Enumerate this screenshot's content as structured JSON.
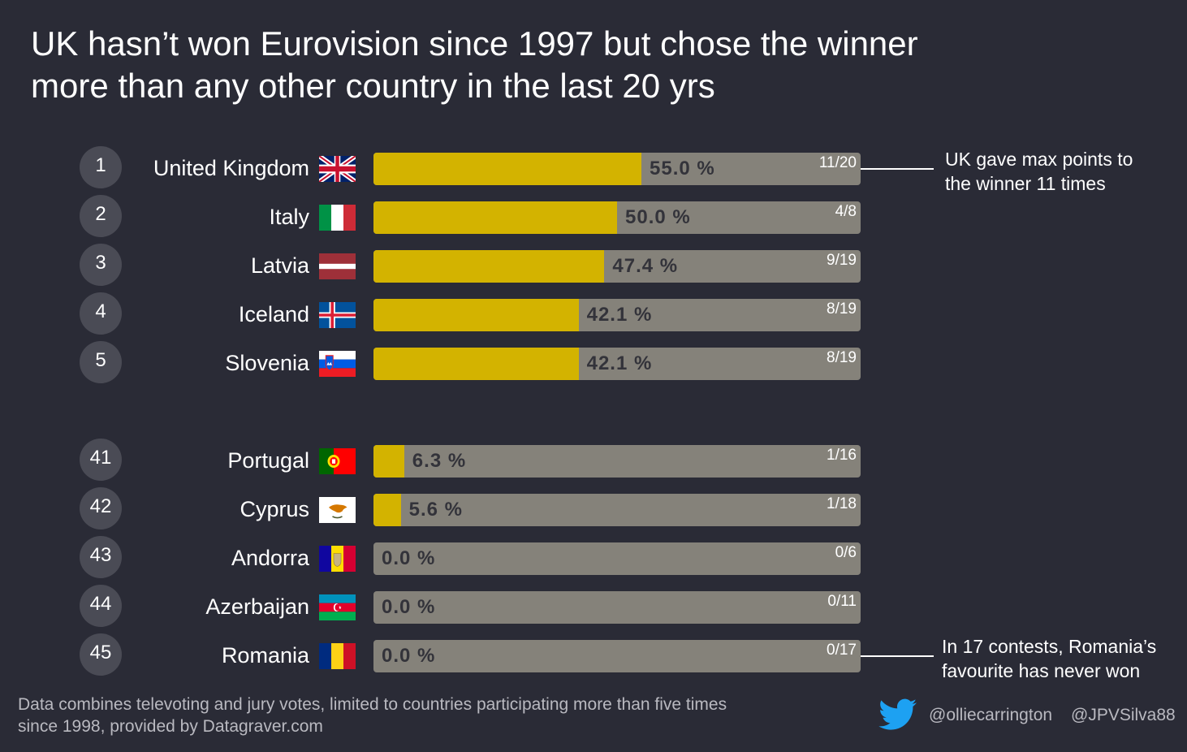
{
  "title": {
    "line1": "UK hasn’t won Eurovision since 1997 but chose the winner",
    "line2": "more than any other country in the last 20 yrs"
  },
  "chart_data": {
    "type": "bar",
    "orientation": "horizontal",
    "unit": "%",
    "xlim": [
      0,
      100
    ],
    "colors": {
      "fill": "#d3b300",
      "track": "#85827a",
      "background": "#2a2b36",
      "rank_circle": "#4a4b55"
    },
    "groups": [
      {
        "rows": [
          {
            "rank": "1",
            "country": "United Kingdom",
            "flag": "uk-flag-icon",
            "value": 55.0,
            "label": "55.0 %",
            "fraction": "11/20"
          },
          {
            "rank": "2",
            "country": "Italy",
            "flag": "italy-flag-icon",
            "value": 50.0,
            "label": "50.0 %",
            "fraction": "4/8"
          },
          {
            "rank": "3",
            "country": "Latvia",
            "flag": "latvia-flag-icon",
            "value": 47.4,
            "label": "47.4 %",
            "fraction": "9/19"
          },
          {
            "rank": "4",
            "country": "Iceland",
            "flag": "iceland-flag-icon",
            "value": 42.1,
            "label": "42.1 %",
            "fraction": "8/19"
          },
          {
            "rank": "5",
            "country": "Slovenia",
            "flag": "slovenia-flag-icon",
            "value": 42.1,
            "label": "42.1 %",
            "fraction": "8/19"
          }
        ]
      },
      {
        "rows": [
          {
            "rank": "41",
            "country": "Portugal",
            "flag": "portugal-flag-icon",
            "value": 6.3,
            "label": "6.3 %",
            "fraction": "1/16"
          },
          {
            "rank": "42",
            "country": "Cyprus",
            "flag": "cyprus-flag-icon",
            "value": 5.6,
            "label": "5.6 %",
            "fraction": "1/18"
          },
          {
            "rank": "43",
            "country": "Andorra",
            "flag": "andorra-flag-icon",
            "value": 0.0,
            "label": "0.0 %",
            "fraction": "0/6"
          },
          {
            "rank": "44",
            "country": "Azerbaijan",
            "flag": "azerbaijan-flag-icon",
            "value": 0.0,
            "label": "0.0 %",
            "fraction": "0/11"
          },
          {
            "rank": "45",
            "country": "Romania",
            "flag": "romania-flag-icon",
            "value": 0.0,
            "label": "0.0 %",
            "fraction": "0/17"
          }
        ]
      }
    ]
  },
  "annotations": {
    "uk": {
      "line1": "UK gave max points to",
      "line2": "the winner 11 times"
    },
    "romania": {
      "line1": "In 17 contests, Romania’s",
      "line2": "favourite has never won"
    }
  },
  "footer": {
    "note_line1": "Data combines televoting and jury votes, limited to countries participating more than five times",
    "note_line2": "since 1998, provided by Datagraver.com",
    "twitter_icon": "twitter-icon",
    "handle1": "@olliecarrington",
    "handle2": "@JPVSilva88"
  }
}
